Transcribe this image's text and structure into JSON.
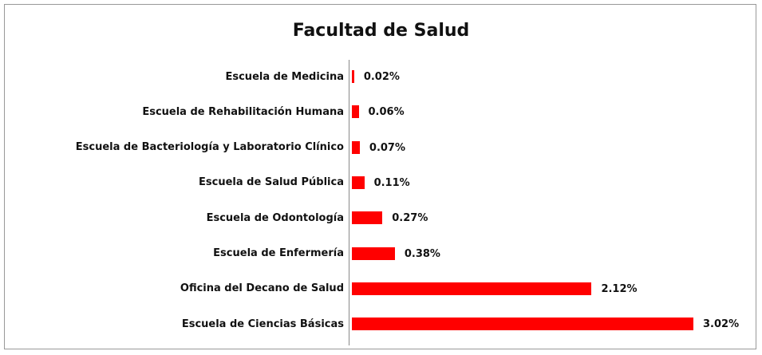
{
  "chart_data": {
    "type": "bar",
    "orientation": "horizontal",
    "title": "Facultad de Salud",
    "categories": [
      "Escuela de Medicina",
      "Escuela de Rehabilitación Humana",
      "Escuela de Bacteriología y Laboratorio Clínico",
      "Escuela de Salud Pública",
      "Escuela de Odontología",
      "Escuela de Enfermería",
      "Oficina del Decano de Salud",
      "Escuela de Ciencias Básicas"
    ],
    "values": [
      0.02,
      0.06,
      0.07,
      0.11,
      0.27,
      0.38,
      2.12,
      3.02
    ],
    "value_labels": [
      "0.02%",
      "0.06%",
      "0.07%",
      "0.11%",
      "0.27%",
      "0.38%",
      "2.12%",
      "3.02%"
    ],
    "color": "#ff0000"
  }
}
